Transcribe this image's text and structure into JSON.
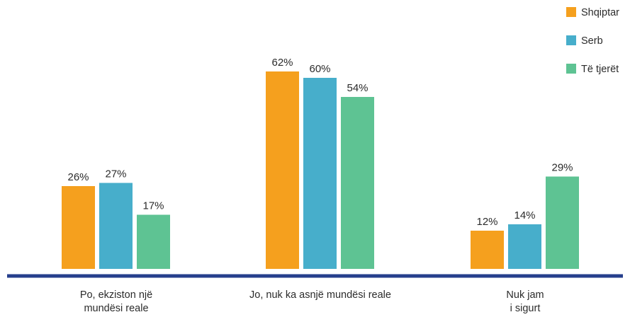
{
  "chart_data": {
    "type": "bar",
    "categories": [
      [
        "Po, ekziston një",
        "mundësi reale"
      ],
      [
        "Jo, nuk ka asnjë mundësi reale"
      ],
      [
        "Nuk jam",
        "i sigurt"
      ]
    ],
    "series": [
      {
        "name": "Shqiptar",
        "color": "#f5a01e",
        "values": [
          26,
          62,
          12
        ],
        "labels": [
          "26%",
          "62%",
          "12%"
        ]
      },
      {
        "name": "Serb",
        "color": "#47aecb",
        "values": [
          27,
          60,
          14
        ],
        "labels": [
          "27%",
          "60%",
          "14%"
        ]
      },
      {
        "name": "Të tjerët",
        "color": "#5ec393",
        "values": [
          17,
          54,
          29
        ],
        "labels": [
          "17%",
          "54%",
          "29%"
        ]
      }
    ],
    "ylim": [
      0,
      70
    ],
    "unit": "%",
    "grid": false,
    "legend_position": "top-right",
    "axis_color": "#263f8c"
  }
}
